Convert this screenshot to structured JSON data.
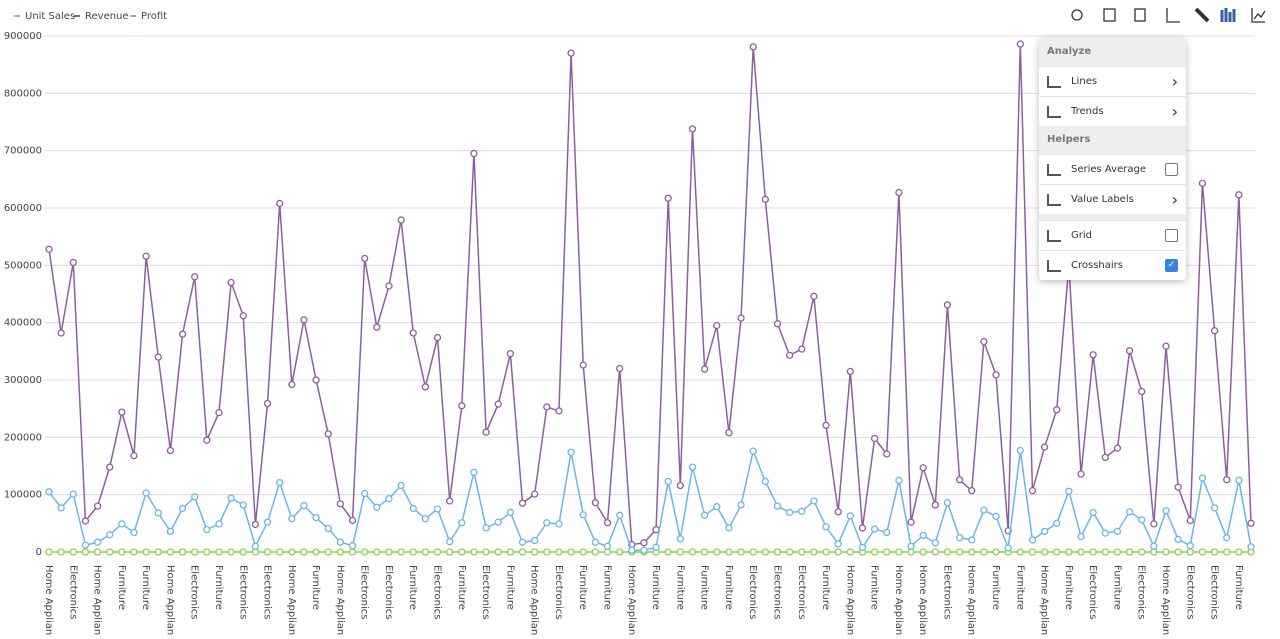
{
  "chart_data": {
    "type": "line",
    "categories": [
      "Home Appliances",
      null,
      "Electronics",
      null,
      "Home Appliances",
      null,
      "Furniture",
      null,
      "Furniture",
      null,
      "Home Appliances",
      null,
      "Electronics",
      null,
      "Furniture",
      null,
      "Electronics",
      null,
      "Electronics",
      null,
      "Home Appliances",
      null,
      "Furniture",
      null,
      "Home Appliances",
      null,
      "Electronics",
      null,
      "Electronics",
      null,
      "Furniture",
      null,
      "Electronics",
      null,
      "Furniture",
      null,
      "Electronics",
      null,
      "Furniture",
      null,
      "Home Appliances",
      null,
      "Electronics",
      null,
      "Furniture",
      null,
      "Furniture",
      null,
      "Home Appliances",
      null,
      "Furniture",
      null,
      "Furniture",
      null,
      "Furniture",
      null,
      "Furniture",
      null,
      "Electronics",
      null,
      "Electronics",
      null,
      "Electronics",
      null,
      "Furniture",
      null,
      "Home Appliances",
      null,
      "Furniture",
      null,
      "Home Appliances",
      null,
      "Home Appliances",
      null,
      "Electronics",
      null,
      "Home Appliances",
      null,
      "Furniture",
      null,
      "Furniture",
      null,
      "Home Appliances",
      null,
      "Furniture",
      null,
      "Electronics",
      null,
      "Furniture",
      null,
      "Electronics",
      null,
      "Home Appliances",
      null,
      "Electronics",
      null,
      "Electronics",
      null,
      "Furniture",
      null
    ],
    "series": [
      {
        "name": "Unit Sales",
        "color": "#8fd14f",
        "values": [
          0,
          0,
          0,
          0,
          0,
          0,
          0,
          0,
          0,
          0,
          0,
          0,
          0,
          0,
          0,
          0,
          0,
          0,
          0,
          0,
          0,
          0,
          0,
          0,
          0,
          0,
          0,
          0,
          0,
          0,
          0,
          0,
          0,
          0,
          0,
          0,
          0,
          0,
          0,
          0,
          0,
          0,
          0,
          0,
          0,
          0,
          0,
          0,
          0,
          0,
          0,
          0,
          0,
          0,
          0,
          0,
          0,
          0,
          0,
          0,
          0,
          0,
          0,
          0,
          0,
          0,
          0,
          0,
          0,
          0,
          0,
          0,
          0,
          0,
          0,
          0,
          0,
          0,
          0,
          0,
          0,
          0,
          0,
          0,
          0,
          0,
          0,
          0,
          0,
          0,
          0,
          0,
          0,
          0,
          0,
          0,
          0,
          0,
          0,
          0
        ]
      },
      {
        "name": "Revenue",
        "color": "#8e5ea2",
        "values": [
          528000,
          382000,
          505000,
          54000,
          80000,
          148000,
          244000,
          168000,
          516000,
          340000,
          177000,
          380000,
          480000,
          195000,
          243000,
          470000,
          412000,
          48000,
          259000,
          608000,
          292000,
          405000,
          300000,
          206000,
          84000,
          55000,
          512000,
          392000,
          464000,
          579000,
          382000,
          288000,
          374000,
          89000,
          255000,
          695000,
          209000,
          258000,
          346000,
          85000,
          101000,
          253000,
          246000,
          870000,
          326000,
          86000,
          51000,
          320000,
          13000,
          16000,
          39000,
          617000,
          116000,
          738000,
          319000,
          395000,
          208000,
          408000,
          881000,
          615000,
          398000,
          343000,
          354000,
          446000,
          221000,
          70000,
          315000,
          42000,
          198000,
          171000,
          627000,
          52000,
          147000,
          82000,
          431000,
          126000,
          107000,
          367000,
          309000,
          37000,
          886000,
          107000,
          183000,
          248000,
          500000,
          136000,
          344000,
          165000,
          181000,
          351000,
          280000,
          49000,
          359000,
          113000,
          55000,
          643000,
          386000,
          126000,
          623000,
          50000
        ]
      },
      {
        "name": "Profit",
        "color": "#6ab7e8",
        "values": [
          105000,
          77000,
          101000,
          12000,
          17000,
          30000,
          49000,
          34000,
          103000,
          68000,
          36000,
          76000,
          96000,
          39000,
          49000,
          94000,
          82000,
          10000,
          52000,
          121000,
          58000,
          81000,
          60000,
          41000,
          17000,
          11000,
          102000,
          78000,
          93000,
          116000,
          76000,
          58000,
          75000,
          18000,
          51000,
          139000,
          42000,
          52000,
          69000,
          17000,
          20000,
          51000,
          49000,
          174000,
          65000,
          17000,
          10000,
          64000,
          3000,
          3000,
          8000,
          123000,
          23000,
          148000,
          64000,
          79000,
          42000,
          82000,
          176000,
          123000,
          80000,
          69000,
          71000,
          89000,
          44000,
          14000,
          63000,
          8000,
          40000,
          34000,
          125000,
          10000,
          29000,
          16000,
          86000,
          25000,
          21000,
          73000,
          62000,
          7000,
          177000,
          21000,
          36000,
          50000,
          106000,
          27000,
          69000,
          33000,
          36000,
          70000,
          56000,
          10000,
          72000,
          22000,
          11000,
          129000,
          77000,
          25000,
          125000,
          9000
        ]
      }
    ],
    "ylim": [
      0,
      900000
    ],
    "yticks": [
      0,
      100000,
      200000,
      300000,
      400000,
      500000,
      600000,
      700000,
      800000,
      900000
    ],
    "grid": true,
    "legend": "top-left"
  },
  "menu": {
    "sections": [
      {
        "title": "Analyze",
        "items": [
          {
            "label": "Lines",
            "submenu": true
          },
          {
            "label": "Trends",
            "submenu": true
          }
        ]
      },
      {
        "title": "Helpers",
        "items": [
          {
            "label": "Series Average",
            "checked": false
          },
          {
            "label": "Value Labels",
            "submenu": true
          }
        ]
      },
      {
        "items": [
          {
            "label": "Grid",
            "checked": false
          },
          {
            "label": "Crosshairs",
            "checked": true
          }
        ]
      }
    ]
  }
}
